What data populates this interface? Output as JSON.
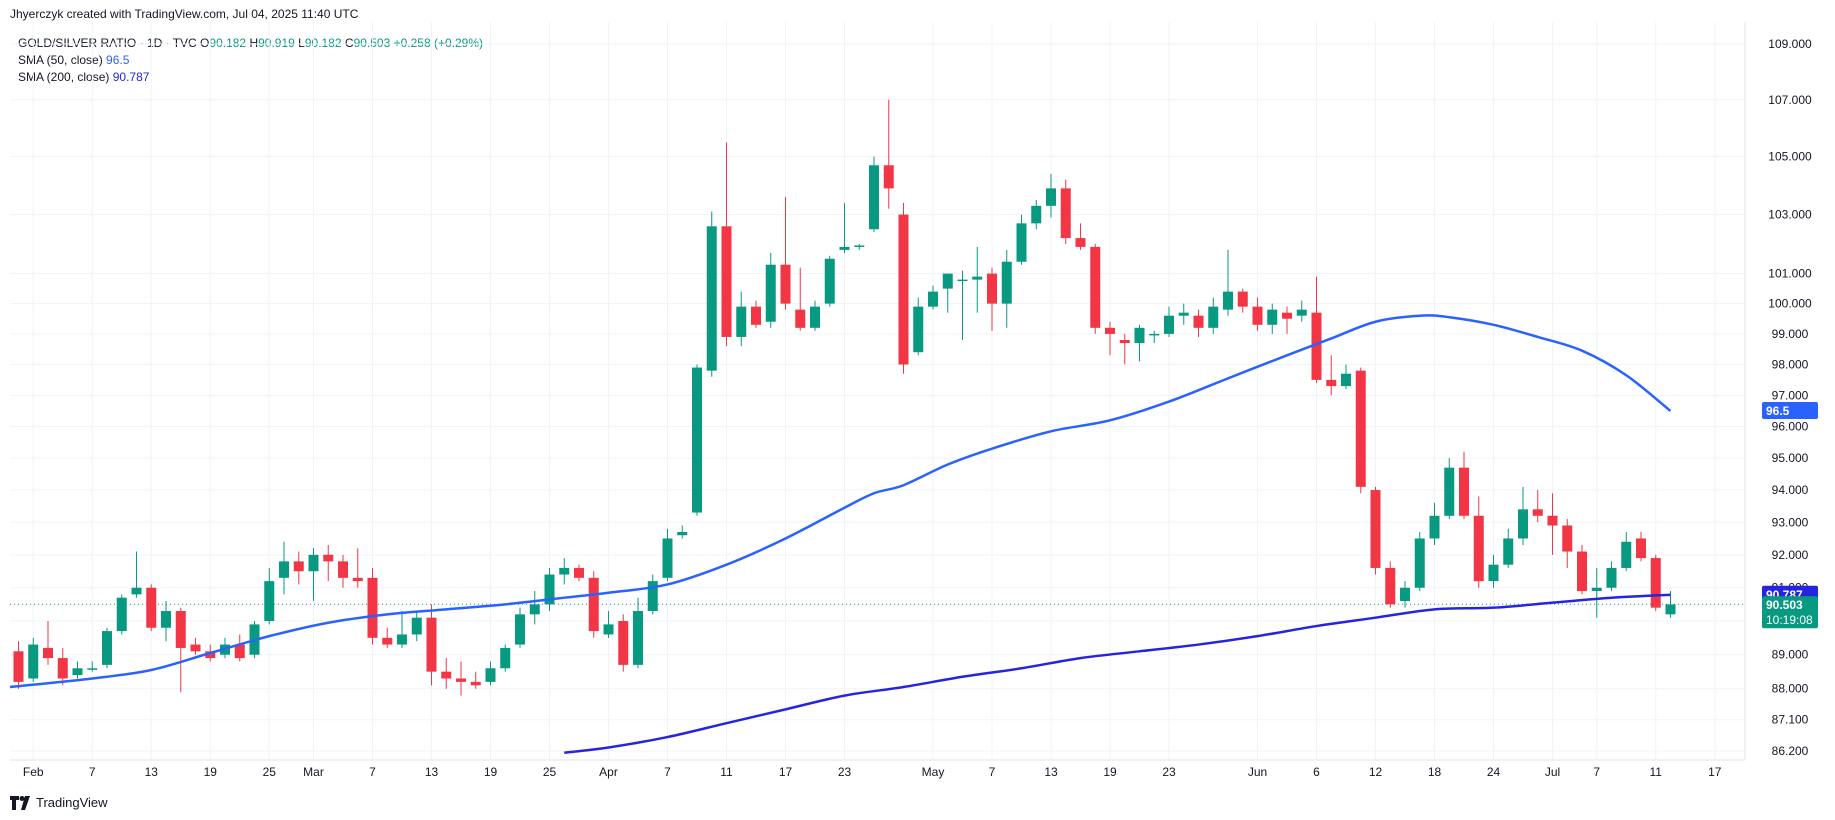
{
  "header": {
    "attribution": "Jhyerczyk created with TradingView.com, Jul 04, 2025 11:40 UTC"
  },
  "legend": {
    "symbol": "GOLD/SILVER RATIO · 1D · TVC",
    "o_label": "O",
    "o": "90.182",
    "h_label": "H",
    "h": "90.919",
    "l_label": "L",
    "l": "90.182",
    "c_label": "C",
    "c": "90.503",
    "change": "+0.258 (+0.29%)",
    "sma50_label": "SMA (50, close)",
    "sma50_value": "96.5",
    "sma200_label": "SMA (200, close)",
    "sma200_value": "90.787"
  },
  "footer": {
    "brand": "TradingView"
  },
  "colors": {
    "up": "#089981",
    "down": "#f23645",
    "sma50": "#2962ff",
    "sma200": "#2525e0",
    "grid": "#f0f3fa",
    "text": "#131722"
  },
  "chart_data": {
    "type": "candlestick",
    "scale": "log",
    "ylim": [
      86.2,
      109.0
    ],
    "yticks": [
      86.2,
      87.1,
      88.0,
      89.0,
      90.0,
      91.0,
      92.0,
      93.0,
      94.0,
      95.0,
      96.0,
      97.0,
      98.0,
      99.0,
      100.0,
      101.0,
      103.0,
      105.0,
      107.0,
      109.0
    ],
    "xticks": [
      {
        "i": 1,
        "label": "Feb"
      },
      {
        "i": 5,
        "label": "7"
      },
      {
        "i": 9,
        "label": "13"
      },
      {
        "i": 13,
        "label": "19"
      },
      {
        "i": 17,
        "label": "25"
      },
      {
        "i": 20,
        "label": "Mar"
      },
      {
        "i": 24,
        "label": "7"
      },
      {
        "i": 28,
        "label": "13"
      },
      {
        "i": 32,
        "label": "19"
      },
      {
        "i": 36,
        "label": "25"
      },
      {
        "i": 40,
        "label": "Apr"
      },
      {
        "i": 44,
        "label": "7"
      },
      {
        "i": 48,
        "label": "11"
      },
      {
        "i": 52,
        "label": "17"
      },
      {
        "i": 56,
        "label": "23"
      },
      {
        "i": 62,
        "label": "May"
      },
      {
        "i": 66,
        "label": "7"
      },
      {
        "i": 70,
        "label": "13"
      },
      {
        "i": 74,
        "label": "19"
      },
      {
        "i": 78,
        "label": "23"
      },
      {
        "i": 84,
        "label": "Jun"
      },
      {
        "i": 88,
        "label": "6"
      },
      {
        "i": 92,
        "label": "12"
      },
      {
        "i": 96,
        "label": "18"
      },
      {
        "i": 100,
        "label": "24"
      },
      {
        "i": 104,
        "label": "Jul"
      },
      {
        "i": 107,
        "label": "7"
      },
      {
        "i": 111,
        "label": "11"
      },
      {
        "i": 115,
        "label": "17"
      }
    ],
    "candles": [
      {
        "i": 0,
        "o": 89.1,
        "h": 89.4,
        "l": 88.0,
        "c": 88.2
      },
      {
        "i": 1,
        "o": 88.3,
        "h": 89.5,
        "l": 88.2,
        "c": 89.3
      },
      {
        "i": 2,
        "o": 89.2,
        "h": 90.0,
        "l": 88.7,
        "c": 88.9
      },
      {
        "i": 3,
        "o": 88.9,
        "h": 89.2,
        "l": 88.1,
        "c": 88.3
      },
      {
        "i": 4,
        "o": 88.4,
        "h": 88.8,
        "l": 88.3,
        "c": 88.6
      },
      {
        "i": 5,
        "o": 88.6,
        "h": 88.8,
        "l": 88.5,
        "c": 88.6
      },
      {
        "i": 6,
        "o": 88.7,
        "h": 89.8,
        "l": 88.6,
        "c": 89.7
      },
      {
        "i": 7,
        "o": 89.7,
        "h": 90.8,
        "l": 89.6,
        "c": 90.7
      },
      {
        "i": 8,
        "o": 90.8,
        "h": 92.1,
        "l": 90.7,
        "c": 91.0
      },
      {
        "i": 9,
        "o": 91.0,
        "h": 91.1,
        "l": 89.7,
        "c": 89.8
      },
      {
        "i": 10,
        "o": 89.8,
        "h": 90.6,
        "l": 89.4,
        "c": 90.3
      },
      {
        "i": 11,
        "o": 90.3,
        "h": 90.4,
        "l": 87.9,
        "c": 89.2
      },
      {
        "i": 12,
        "o": 89.3,
        "h": 89.5,
        "l": 89.0,
        "c": 89.1
      },
      {
        "i": 13,
        "o": 89.1,
        "h": 89.3,
        "l": 88.8,
        "c": 88.9
      },
      {
        "i": 14,
        "o": 89.0,
        "h": 89.5,
        "l": 88.9,
        "c": 89.3
      },
      {
        "i": 15,
        "o": 89.3,
        "h": 89.6,
        "l": 88.8,
        "c": 88.9
      },
      {
        "i": 16,
        "o": 89.0,
        "h": 90.0,
        "l": 88.9,
        "c": 89.9
      },
      {
        "i": 17,
        "o": 90.0,
        "h": 91.6,
        "l": 89.9,
        "c": 91.2
      },
      {
        "i": 18,
        "o": 91.3,
        "h": 92.4,
        "l": 90.8,
        "c": 91.8
      },
      {
        "i": 19,
        "o": 91.8,
        "h": 92.1,
        "l": 91.1,
        "c": 91.5
      },
      {
        "i": 20,
        "o": 91.5,
        "h": 92.2,
        "l": 90.6,
        "c": 92.0
      },
      {
        "i": 21,
        "o": 92.0,
        "h": 92.3,
        "l": 91.2,
        "c": 91.8
      },
      {
        "i": 22,
        "o": 91.8,
        "h": 92.0,
        "l": 91.0,
        "c": 91.3
      },
      {
        "i": 23,
        "o": 91.3,
        "h": 92.2,
        "l": 91.0,
        "c": 91.2
      },
      {
        "i": 24,
        "o": 91.3,
        "h": 91.6,
        "l": 89.3,
        "c": 89.5
      },
      {
        "i": 25,
        "o": 89.5,
        "h": 89.8,
        "l": 89.2,
        "c": 89.3
      },
      {
        "i": 26,
        "o": 89.3,
        "h": 90.3,
        "l": 89.2,
        "c": 89.6
      },
      {
        "i": 27,
        "o": 89.6,
        "h": 90.3,
        "l": 89.4,
        "c": 90.1
      },
      {
        "i": 28,
        "o": 90.1,
        "h": 90.5,
        "l": 88.1,
        "c": 88.5
      },
      {
        "i": 29,
        "o": 88.5,
        "h": 88.9,
        "l": 88.0,
        "c": 88.3
      },
      {
        "i": 30,
        "o": 88.3,
        "h": 88.8,
        "l": 87.8,
        "c": 88.2
      },
      {
        "i": 31,
        "o": 88.2,
        "h": 88.5,
        "l": 88.0,
        "c": 88.1
      },
      {
        "i": 32,
        "o": 88.2,
        "h": 88.8,
        "l": 88.1,
        "c": 88.6
      },
      {
        "i": 33,
        "o": 88.6,
        "h": 89.3,
        "l": 88.5,
        "c": 89.2
      },
      {
        "i": 34,
        "o": 89.3,
        "h": 90.4,
        "l": 89.2,
        "c": 90.2
      },
      {
        "i": 35,
        "o": 90.2,
        "h": 90.9,
        "l": 89.9,
        "c": 90.5
      },
      {
        "i": 36,
        "o": 90.5,
        "h": 91.6,
        "l": 90.3,
        "c": 91.4
      },
      {
        "i": 37,
        "o": 91.4,
        "h": 91.9,
        "l": 91.1,
        "c": 91.6
      },
      {
        "i": 38,
        "o": 91.6,
        "h": 91.7,
        "l": 91.2,
        "c": 91.3
      },
      {
        "i": 39,
        "o": 91.3,
        "h": 91.5,
        "l": 89.5,
        "c": 89.7
      },
      {
        "i": 40,
        "o": 89.6,
        "h": 90.3,
        "l": 89.5,
        "c": 89.9
      },
      {
        "i": 41,
        "o": 90.0,
        "h": 90.2,
        "l": 88.5,
        "c": 88.7
      },
      {
        "i": 42,
        "o": 88.7,
        "h": 90.7,
        "l": 88.6,
        "c": 90.3
      },
      {
        "i": 43,
        "o": 90.3,
        "h": 91.4,
        "l": 90.2,
        "c": 91.2
      },
      {
        "i": 44,
        "o": 91.3,
        "h": 92.8,
        "l": 91.2,
        "c": 92.5
      },
      {
        "i": 45,
        "o": 92.6,
        "h": 92.9,
        "l": 92.5,
        "c": 92.7
      },
      {
        "i": 46,
        "o": 93.3,
        "h": 98.0,
        "l": 93.2,
        "c": 97.9
      },
      {
        "i": 47,
        "o": 97.8,
        "h": 103.1,
        "l": 97.6,
        "c": 102.6
      },
      {
        "i": 48,
        "o": 102.6,
        "h": 105.5,
        "l": 98.6,
        "c": 98.9
      },
      {
        "i": 49,
        "o": 98.9,
        "h": 100.4,
        "l": 98.6,
        "c": 99.9
      },
      {
        "i": 50,
        "o": 99.9,
        "h": 100.1,
        "l": 99.2,
        "c": 99.3
      },
      {
        "i": 51,
        "o": 99.4,
        "h": 101.7,
        "l": 99.2,
        "c": 101.3
      },
      {
        "i": 52,
        "o": 101.3,
        "h": 103.6,
        "l": 99.8,
        "c": 100.0
      },
      {
        "i": 53,
        "o": 99.8,
        "h": 101.2,
        "l": 99.1,
        "c": 99.2
      },
      {
        "i": 54,
        "o": 99.2,
        "h": 100.1,
        "l": 99.1,
        "c": 99.9
      },
      {
        "i": 55,
        "o": 100.0,
        "h": 101.6,
        "l": 99.9,
        "c": 101.5
      },
      {
        "i": 56,
        "o": 101.8,
        "h": 103.4,
        "l": 101.7,
        "c": 101.9
      },
      {
        "i": 57,
        "o": 101.9,
        "h": 102.0,
        "l": 101.8,
        "c": 101.95
      },
      {
        "i": 58,
        "o": 102.5,
        "h": 105.0,
        "l": 102.4,
        "c": 104.7
      },
      {
        "i": 59,
        "o": 104.7,
        "h": 107.0,
        "l": 103.2,
        "c": 103.9
      },
      {
        "i": 60,
        "o": 103.0,
        "h": 103.4,
        "l": 97.7,
        "c": 98.0
      },
      {
        "i": 61,
        "o": 98.4,
        "h": 100.2,
        "l": 98.3,
        "c": 99.9
      },
      {
        "i": 62,
        "o": 99.9,
        "h": 100.6,
        "l": 99.8,
        "c": 100.4
      },
      {
        "i": 63,
        "o": 100.5,
        "h": 101.0,
        "l": 99.7,
        "c": 101.0
      },
      {
        "i": 64,
        "o": 100.8,
        "h": 101.1,
        "l": 98.8,
        "c": 100.8
      },
      {
        "i": 65,
        "o": 100.8,
        "h": 101.9,
        "l": 99.7,
        "c": 100.9
      },
      {
        "i": 66,
        "o": 101.0,
        "h": 101.2,
        "l": 99.1,
        "c": 100.0
      },
      {
        "i": 67,
        "o": 100.0,
        "h": 101.8,
        "l": 99.2,
        "c": 101.4
      },
      {
        "i": 68,
        "o": 101.4,
        "h": 103.0,
        "l": 101.3,
        "c": 102.7
      },
      {
        "i": 69,
        "o": 102.7,
        "h": 103.5,
        "l": 102.5,
        "c": 103.3
      },
      {
        "i": 70,
        "o": 103.3,
        "h": 104.4,
        "l": 102.9,
        "c": 103.9
      },
      {
        "i": 71,
        "o": 103.9,
        "h": 104.2,
        "l": 102.0,
        "c": 102.2
      },
      {
        "i": 72,
        "o": 102.2,
        "h": 102.7,
        "l": 101.8,
        "c": 101.9
      },
      {
        "i": 73,
        "o": 101.9,
        "h": 102.0,
        "l": 99.0,
        "c": 99.2
      },
      {
        "i": 74,
        "o": 99.2,
        "h": 99.4,
        "l": 98.3,
        "c": 99.0
      },
      {
        "i": 75,
        "o": 98.8,
        "h": 99.0,
        "l": 98.0,
        "c": 98.7
      },
      {
        "i": 76,
        "o": 98.7,
        "h": 99.3,
        "l": 98.1,
        "c": 99.2
      },
      {
        "i": 77,
        "o": 99.0,
        "h": 99.1,
        "l": 98.7,
        "c": 99.0
      },
      {
        "i": 78,
        "o": 99.0,
        "h": 99.9,
        "l": 98.9,
        "c": 99.6
      },
      {
        "i": 79,
        "o": 99.6,
        "h": 100.0,
        "l": 99.3,
        "c": 99.7
      },
      {
        "i": 80,
        "o": 99.6,
        "h": 99.8,
        "l": 98.9,
        "c": 99.2
      },
      {
        "i": 81,
        "o": 99.2,
        "h": 100.2,
        "l": 99.0,
        "c": 99.9
      },
      {
        "i": 82,
        "o": 99.8,
        "h": 101.8,
        "l": 99.6,
        "c": 100.4
      },
      {
        "i": 83,
        "o": 100.4,
        "h": 100.5,
        "l": 99.7,
        "c": 99.9
      },
      {
        "i": 84,
        "o": 99.9,
        "h": 100.2,
        "l": 99.1,
        "c": 99.3
      },
      {
        "i": 85,
        "o": 99.3,
        "h": 100.0,
        "l": 99.0,
        "c": 99.8
      },
      {
        "i": 86,
        "o": 99.7,
        "h": 99.9,
        "l": 99.0,
        "c": 99.5
      },
      {
        "i": 87,
        "o": 99.6,
        "h": 100.1,
        "l": 99.4,
        "c": 99.8
      },
      {
        "i": 88,
        "o": 99.7,
        "h": 100.9,
        "l": 97.4,
        "c": 97.5
      },
      {
        "i": 89,
        "o": 97.5,
        "h": 98.3,
        "l": 97.0,
        "c": 97.3
      },
      {
        "i": 90,
        "o": 97.3,
        "h": 98.0,
        "l": 97.2,
        "c": 97.7
      },
      {
        "i": 91,
        "o": 97.8,
        "h": 97.9,
        "l": 93.9,
        "c": 94.1
      },
      {
        "i": 92,
        "o": 94.0,
        "h": 94.1,
        "l": 91.4,
        "c": 91.6
      },
      {
        "i": 93,
        "o": 91.6,
        "h": 91.8,
        "l": 90.4,
        "c": 90.5
      },
      {
        "i": 94,
        "o": 90.6,
        "h": 91.2,
        "l": 90.4,
        "c": 91.0
      },
      {
        "i": 95,
        "o": 91.0,
        "h": 92.7,
        "l": 90.9,
        "c": 92.5
      },
      {
        "i": 96,
        "o": 92.5,
        "h": 93.6,
        "l": 92.3,
        "c": 93.2
      },
      {
        "i": 97,
        "o": 93.2,
        "h": 95.0,
        "l": 93.1,
        "c": 94.7
      },
      {
        "i": 98,
        "o": 94.7,
        "h": 95.2,
        "l": 93.1,
        "c": 93.2
      },
      {
        "i": 99,
        "o": 93.2,
        "h": 93.8,
        "l": 91.0,
        "c": 91.2
      },
      {
        "i": 100,
        "o": 91.2,
        "h": 92.0,
        "l": 91.0,
        "c": 91.7
      },
      {
        "i": 101,
        "o": 91.7,
        "h": 92.8,
        "l": 91.6,
        "c": 92.5
      },
      {
        "i": 102,
        "o": 92.5,
        "h": 94.1,
        "l": 92.3,
        "c": 93.4
      },
      {
        "i": 103,
        "o": 93.4,
        "h": 94.0,
        "l": 93.0,
        "c": 93.2
      },
      {
        "i": 104,
        "o": 93.2,
        "h": 93.9,
        "l": 92.0,
        "c": 92.9
      },
      {
        "i": 105,
        "o": 92.9,
        "h": 93.1,
        "l": 91.6,
        "c": 92.1
      },
      {
        "i": 106,
        "o": 92.1,
        "h": 92.3,
        "l": 90.8,
        "c": 90.9
      },
      {
        "i": 107,
        "o": 90.9,
        "h": 91.6,
        "l": 90.1,
        "c": 91.0
      },
      {
        "i": 108,
        "o": 91.0,
        "h": 91.8,
        "l": 90.9,
        "c": 91.6
      },
      {
        "i": 109,
        "o": 91.6,
        "h": 92.7,
        "l": 91.5,
        "c": 92.4
      },
      {
        "i": 110,
        "o": 92.5,
        "h": 92.7,
        "l": 91.8,
        "c": 91.9
      },
      {
        "i": 111,
        "o": 91.9,
        "h": 92.0,
        "l": 90.3,
        "c": 90.4
      },
      {
        "i": 112,
        "o": 90.2,
        "h": 90.9,
        "l": 90.1,
        "c": 90.5
      }
    ],
    "sma50": [
      {
        "i": 0,
        "v": 88.05
      },
      {
        "i": 5,
        "v": 88.3
      },
      {
        "i": 9,
        "v": 88.55
      },
      {
        "i": 13,
        "v": 89.05
      },
      {
        "i": 17,
        "v": 89.55
      },
      {
        "i": 21,
        "v": 89.95
      },
      {
        "i": 25,
        "v": 90.2
      },
      {
        "i": 29,
        "v": 90.35
      },
      {
        "i": 33,
        "v": 90.5
      },
      {
        "i": 37,
        "v": 90.7
      },
      {
        "i": 40,
        "v": 90.85
      },
      {
        "i": 44,
        "v": 91.1
      },
      {
        "i": 48,
        "v": 91.7
      },
      {
        "i": 52,
        "v": 92.5
      },
      {
        "i": 56,
        "v": 93.45
      },
      {
        "i": 58,
        "v": 93.9
      },
      {
        "i": 60,
        "v": 94.15
      },
      {
        "i": 63,
        "v": 94.8
      },
      {
        "i": 66,
        "v": 95.3
      },
      {
        "i": 70,
        "v": 95.85
      },
      {
        "i": 74,
        "v": 96.2
      },
      {
        "i": 78,
        "v": 96.8
      },
      {
        "i": 82,
        "v": 97.55
      },
      {
        "i": 86,
        "v": 98.3
      },
      {
        "i": 89,
        "v": 98.85
      },
      {
        "i": 92,
        "v": 99.4
      },
      {
        "i": 95,
        "v": 99.6
      },
      {
        "i": 97,
        "v": 99.55
      },
      {
        "i": 100,
        "v": 99.3
      },
      {
        "i": 103,
        "v": 98.9
      },
      {
        "i": 106,
        "v": 98.45
      },
      {
        "i": 109,
        "v": 97.65
      },
      {
        "i": 112,
        "v": 96.5
      }
    ],
    "sma200": [
      {
        "i": 37,
        "v": 86.15
      },
      {
        "i": 40,
        "v": 86.3
      },
      {
        "i": 44,
        "v": 86.6
      },
      {
        "i": 48,
        "v": 87.0
      },
      {
        "i": 52,
        "v": 87.4
      },
      {
        "i": 56,
        "v": 87.8
      },
      {
        "i": 60,
        "v": 88.05
      },
      {
        "i": 64,
        "v": 88.35
      },
      {
        "i": 68,
        "v": 88.6
      },
      {
        "i": 72,
        "v": 88.9
      },
      {
        "i": 76,
        "v": 89.1
      },
      {
        "i": 80,
        "v": 89.3
      },
      {
        "i": 84,
        "v": 89.55
      },
      {
        "i": 88,
        "v": 89.85
      },
      {
        "i": 92,
        "v": 90.1
      },
      {
        "i": 96,
        "v": 90.35
      },
      {
        "i": 100,
        "v": 90.4
      },
      {
        "i": 104,
        "v": 90.55
      },
      {
        "i": 108,
        "v": 90.7
      },
      {
        "i": 112,
        "v": 90.787
      }
    ],
    "last_price": {
      "label": "90.503",
      "v": 90.503,
      "countdown": "10:19:08"
    },
    "sma50_tag": {
      "label": "96.5",
      "v": 96.5
    },
    "sma200_tag": {
      "label": "90.787",
      "v": 90.787
    }
  }
}
